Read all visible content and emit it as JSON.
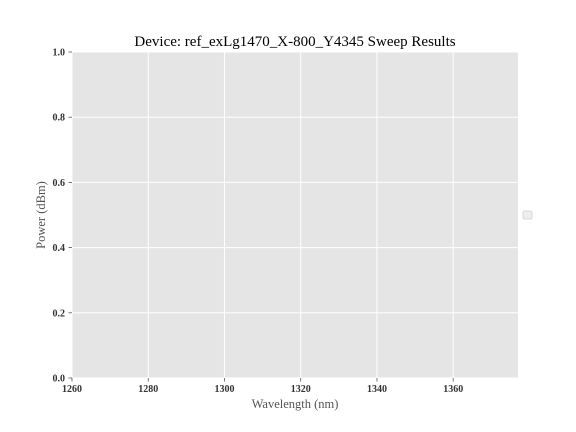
{
  "chart_data": {
    "type": "line",
    "title": "Device: ref_exLg1470_X-800_Y4345 Sweep Results",
    "xlabel": "Wavelength (nm)",
    "ylabel": "Power (dBm)",
    "xlim": [
      1260,
      1377
    ],
    "ylim": [
      0,
      1.0
    ],
    "x_ticks": [
      1260,
      1280,
      1300,
      1320,
      1340,
      1360
    ],
    "x_tick_labels": [
      "1260",
      "1280",
      "1300",
      "1320",
      "1340",
      "1360"
    ],
    "y_ticks": [
      0,
      0.2,
      0.4,
      0.6,
      0.8,
      1.0
    ],
    "y_tick_labels": [
      "0.0",
      "0.2",
      "0.4",
      "0.6",
      "0.8",
      "1.0"
    ],
    "series": [],
    "grid": true,
    "legend": "center-right, outside plot, empty",
    "colors": {
      "plot_background": "#e5e5e5",
      "grid": "#ffffff",
      "text": "#333333"
    }
  }
}
